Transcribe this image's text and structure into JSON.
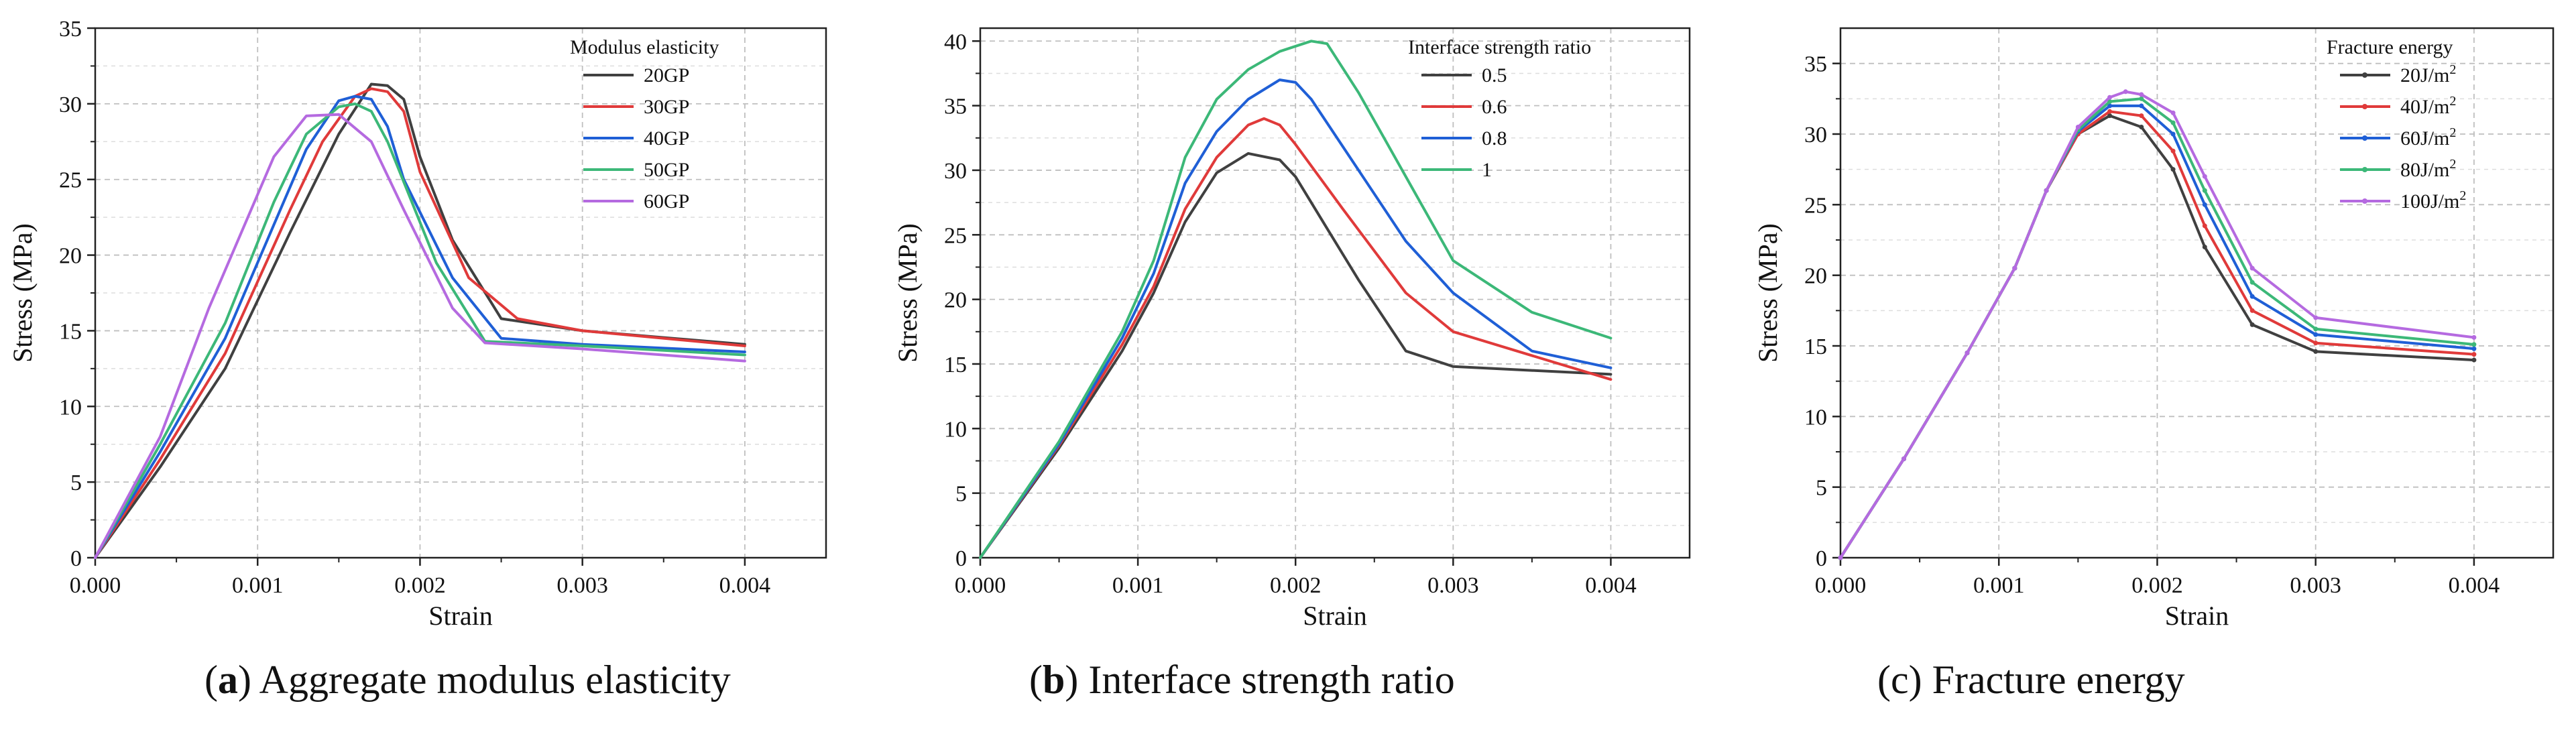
{
  "chart_data": [
    {
      "type": "line",
      "caption_letter": "a",
      "caption_text": ") Aggregate modulus elasticity",
      "xlabel": "Strain",
      "ylabel": "Stress (MPa)",
      "xlim": [
        0,
        0.0045
      ],
      "ylim": [
        0,
        35
      ],
      "xticks": [
        "0.000",
        "0.001",
        "0.002",
        "0.003",
        "0.004"
      ],
      "xtick_values": [
        0,
        0.001,
        0.002,
        0.003,
        0.004
      ],
      "yticks": [
        "0",
        "5",
        "10",
        "15",
        "20",
        "25",
        "30",
        "35"
      ],
      "ytick_values": [
        0,
        5,
        10,
        15,
        20,
        25,
        30,
        35
      ],
      "grid": true,
      "legend_title": "Modulus elasticity",
      "legend_position": "top-right",
      "series": [
        {
          "name": "20GP",
          "color": "#404040",
          "x": [
            0,
            0.0004,
            0.0008,
            0.0012,
            0.0015,
            0.0017,
            0.0018,
            0.0019,
            0.002,
            0.0022,
            0.0025,
            0.003,
            0.004
          ],
          "y": [
            0,
            6,
            12.5,
            21.5,
            28,
            31.3,
            31.2,
            30.3,
            26.5,
            21,
            15.8,
            15.0,
            14.1
          ]
        },
        {
          "name": "30GP",
          "color": "#e03a3a",
          "x": [
            0,
            0.0004,
            0.0008,
            0.0012,
            0.0014,
            0.0016,
            0.0017,
            0.0018,
            0.0019,
            0.002,
            0.0023,
            0.0026,
            0.003,
            0.004
          ],
          "y": [
            0,
            6.5,
            13.5,
            23,
            27.5,
            30.5,
            31.0,
            30.8,
            29.5,
            25.5,
            18.5,
            15.8,
            15.0,
            14.0
          ]
        },
        {
          "name": "40GP",
          "color": "#1f5fd6",
          "x": [
            0,
            0.0004,
            0.0008,
            0.0011,
            0.0013,
            0.0015,
            0.0016,
            0.0017,
            0.0018,
            0.0019,
            0.0022,
            0.0025,
            0.003,
            0.004
          ],
          "y": [
            0,
            7,
            14.5,
            22,
            27,
            30.2,
            30.5,
            30.3,
            28.5,
            25,
            18.5,
            14.5,
            14.1,
            13.6
          ]
        },
        {
          "name": "50GP",
          "color": "#3cb878",
          "x": [
            0,
            0.0004,
            0.0008,
            0.0011,
            0.0013,
            0.0015,
            0.0016,
            0.0017,
            0.0018,
            0.0021,
            0.0024,
            0.003,
            0.004
          ],
          "y": [
            0,
            7.5,
            15.5,
            23.5,
            28,
            29.8,
            30.0,
            29.5,
            27.5,
            19.5,
            14.3,
            14.0,
            13.4
          ]
        },
        {
          "name": "60GP",
          "color": "#b56ae0",
          "x": [
            0,
            0.0004,
            0.0007,
            0.0009,
            0.0011,
            0.0013,
            0.0015,
            0.0017,
            0.0019,
            0.0022,
            0.0024,
            0.003,
            0.004
          ],
          "y": [
            0,
            8,
            16.5,
            21.5,
            26.5,
            29.2,
            29.3,
            27.5,
            23,
            16.5,
            14.2,
            13.8,
            13.0
          ]
        }
      ]
    },
    {
      "type": "line",
      "caption_letter": "b",
      "caption_text": ") Interface strength ratio",
      "xlabel": "Strain",
      "ylabel": "Stress (MPa)",
      "xlim": [
        0,
        0.0045
      ],
      "ylim": [
        0,
        41
      ],
      "xticks": [
        "0.000",
        "0.001",
        "0.002",
        "0.003",
        "0.004"
      ],
      "xtick_values": [
        0,
        0.001,
        0.002,
        0.003,
        0.004
      ],
      "yticks": [
        "0",
        "5",
        "10",
        "15",
        "20",
        "25",
        "30",
        "35",
        "40"
      ],
      "ytick_values": [
        0,
        5,
        10,
        15,
        20,
        25,
        30,
        35,
        40
      ],
      "grid": true,
      "legend_title": "Interface strength ratio",
      "legend_position": "top-right",
      "series": [
        {
          "name": "0.5",
          "color": "#404040",
          "x": [
            0,
            0.0005,
            0.0009,
            0.0011,
            0.0013,
            0.0015,
            0.0017,
            0.0019,
            0.002,
            0.0022,
            0.0024,
            0.0027,
            0.003,
            0.004
          ],
          "y": [
            0,
            8.5,
            16,
            20.5,
            26,
            29.8,
            31.3,
            30.8,
            29.5,
            25.5,
            21.5,
            16,
            14.8,
            14.2
          ]
        },
        {
          "name": "0.6",
          "color": "#e03a3a",
          "x": [
            0,
            0.0005,
            0.0009,
            0.0011,
            0.0013,
            0.0015,
            0.0017,
            0.0018,
            0.0019,
            0.002,
            0.0023,
            0.0027,
            0.003,
            0.004
          ],
          "y": [
            0,
            8.7,
            16.5,
            21,
            27,
            31,
            33.5,
            34.0,
            33.5,
            32,
            27,
            20.5,
            17.5,
            13.8
          ]
        },
        {
          "name": "0.8",
          "color": "#1f5fd6",
          "x": [
            0,
            0.0005,
            0.0009,
            0.0011,
            0.0013,
            0.0015,
            0.0017,
            0.0019,
            0.002,
            0.0021,
            0.0024,
            0.0027,
            0.003,
            0.0035,
            0.004
          ],
          "y": [
            0,
            8.8,
            17,
            22,
            29,
            33,
            35.5,
            37.0,
            36.8,
            35.5,
            30,
            24.5,
            20.5,
            16,
            14.7
          ]
        },
        {
          "name": "1",
          "color": "#3cb878",
          "x": [
            0,
            0.0005,
            0.0009,
            0.0011,
            0.0013,
            0.0015,
            0.0017,
            0.0019,
            0.0021,
            0.0022,
            0.0024,
            0.0027,
            0.003,
            0.0035,
            0.004
          ],
          "y": [
            0,
            9,
            17.5,
            23,
            31,
            35.5,
            37.8,
            39.2,
            40.0,
            39.8,
            36,
            29.5,
            23,
            19,
            17
          ]
        }
      ]
    },
    {
      "type": "line",
      "caption_letter": "",
      "caption_text": "(c) Fracture energy",
      "xlabel": "Strain",
      "ylabel": "Stress (MPa)",
      "xlim": [
        0,
        0.0045
      ],
      "ylim": [
        0,
        37.5
      ],
      "xticks": [
        "0.000",
        "0.001",
        "0.002",
        "0.003",
        "0.004"
      ],
      "xtick_values": [
        0,
        0.001,
        0.002,
        0.003,
        0.004
      ],
      "yticks": [
        "0",
        "5",
        "10",
        "15",
        "20",
        "25",
        "30",
        "35"
      ],
      "ytick_values": [
        0,
        5,
        10,
        15,
        20,
        25,
        30,
        35
      ],
      "grid": true,
      "legend_title": "Fracture energy",
      "legend_position": "top-right",
      "series": [
        {
          "name": "20J/m",
          "color": "#404040",
          "x": [
            0,
            0.0004,
            0.0008,
            0.0011,
            0.0013,
            0.0015,
            0.0017,
            0.0019,
            0.0021,
            0.0023,
            0.0026,
            0.003,
            0.004
          ],
          "y": [
            0,
            7,
            14.5,
            20.5,
            26,
            30,
            31.3,
            30.5,
            27.5,
            22,
            16.5,
            14.6,
            14.0
          ]
        },
        {
          "name": "40J/m",
          "color": "#e03a3a",
          "x": [
            0,
            0.0004,
            0.0008,
            0.0011,
            0.0013,
            0.0015,
            0.0017,
            0.0019,
            0.0021,
            0.0023,
            0.0026,
            0.003,
            0.004
          ],
          "y": [
            0,
            7,
            14.5,
            20.5,
            26,
            30,
            31.6,
            31.3,
            28.8,
            23.5,
            17.5,
            15.2,
            14.4
          ]
        },
        {
          "name": "60J/m",
          "color": "#1f5fd6",
          "x": [
            0,
            0.0004,
            0.0008,
            0.0011,
            0.0013,
            0.0015,
            0.0017,
            0.0019,
            0.0021,
            0.0023,
            0.0026,
            0.003,
            0.004
          ],
          "y": [
            0,
            7,
            14.5,
            20.5,
            26,
            30.2,
            32.0,
            32.0,
            30,
            25,
            18.5,
            15.8,
            14.8
          ]
        },
        {
          "name": "80J/m",
          "color": "#3cb878",
          "x": [
            0,
            0.0004,
            0.0008,
            0.0011,
            0.0013,
            0.0015,
            0.0017,
            0.0019,
            0.0021,
            0.0023,
            0.0026,
            0.003,
            0.004
          ],
          "y": [
            0,
            7,
            14.5,
            20.5,
            26,
            30.3,
            32.3,
            32.5,
            30.8,
            26,
            19.5,
            16.2,
            15.1
          ]
        },
        {
          "name": "100J/m",
          "color": "#b56ae0",
          "x": [
            0,
            0.0004,
            0.0008,
            0.0011,
            0.0013,
            0.0015,
            0.0017,
            0.0018,
            0.0019,
            0.0021,
            0.0023,
            0.0026,
            0.003,
            0.004
          ],
          "y": [
            0,
            7,
            14.5,
            20.5,
            26,
            30.5,
            32.6,
            33.0,
            32.8,
            31.5,
            27,
            20.5,
            17,
            15.6
          ]
        }
      ]
    }
  ]
}
